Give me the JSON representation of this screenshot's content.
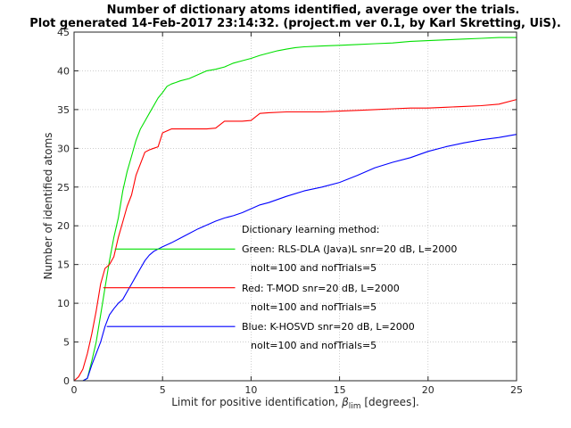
{
  "chart_data": {
    "type": "line",
    "title_line1": "Number of dictionary atoms identified, average over the trials.",
    "title_line2": "Plot generated 14-Feb-2017 23:14:32. (project.m ver 0.1, by Karl Skretting, UiS).",
    "xlabel_prefix": "Limit for positive identification, ",
    "xlabel_symbol": "β",
    "xlabel_subscript": "lim",
    "xlabel_suffix": " [degrees].",
    "ylabel": "Number of identified atoms",
    "xlim": [
      0,
      25
    ],
    "ylim": [
      0,
      45
    ],
    "xticks": [
      0,
      5,
      10,
      15,
      20,
      25
    ],
    "yticks": [
      0,
      5,
      10,
      15,
      20,
      25,
      30,
      35,
      40,
      45
    ],
    "grid": true,
    "series": [
      {
        "color": "#00e000",
        "x": [
          0,
          0.5,
          0.75,
          1,
          1.25,
          1.5,
          1.75,
          2,
          2.25,
          2.5,
          2.75,
          3,
          3.25,
          3.5,
          3.75,
          4,
          4.25,
          4.5,
          4.75,
          5,
          5.25,
          5.5,
          5.75,
          6,
          6.5,
          7,
          7.5,
          8,
          8.5,
          9,
          9.5,
          10,
          10.5,
          11,
          11.5,
          12,
          12.5,
          13,
          14,
          15,
          16,
          17,
          18,
          19,
          20,
          21,
          22,
          23,
          24,
          25
        ],
        "y": [
          0,
          0,
          0.3,
          2.5,
          5,
          8.5,
          12,
          15.5,
          18.5,
          21,
          24.5,
          27,
          29,
          31,
          32.5,
          33.5,
          34.5,
          35.5,
          36.5,
          37.2,
          38,
          38.3,
          38.5,
          38.7,
          39,
          39.5,
          40,
          40.2,
          40.5,
          41,
          41.3,
          41.6,
          42,
          42.3,
          42.6,
          42.8,
          43,
          43.1,
          43.2,
          43.3,
          43.4,
          43.5,
          43.6,
          43.8,
          43.9,
          44,
          44.1,
          44.2,
          44.3,
          44.3
        ]
      },
      {
        "color": "#ff0000",
        "x": [
          0,
          0.25,
          0.5,
          0.75,
          1,
          1.25,
          1.5,
          1.75,
          2,
          2.25,
          2.5,
          2.75,
          3,
          3.25,
          3.5,
          3.75,
          4,
          4.25,
          4.5,
          4.75,
          5,
          5.5,
          6,
          6.5,
          7,
          7.5,
          8,
          8.5,
          9,
          9.5,
          10,
          10.5,
          11,
          12,
          13,
          14,
          15,
          16,
          17,
          18,
          19,
          20,
          21,
          22,
          23,
          24,
          25
        ],
        "y": [
          0,
          0.5,
          1.5,
          3.5,
          6,
          9,
          12.5,
          14.5,
          15,
          16,
          18.5,
          20.5,
          22.5,
          24,
          26.5,
          28,
          29.5,
          29.8,
          30,
          30.2,
          32,
          32.5,
          32.5,
          32.5,
          32.5,
          32.5,
          32.6,
          33.5,
          33.5,
          33.5,
          33.6,
          34.5,
          34.6,
          34.7,
          34.7,
          34.7,
          34.8,
          34.9,
          35,
          35.1,
          35.2,
          35.2,
          35.3,
          35.4,
          35.5,
          35.7,
          36.3
        ]
      },
      {
        "color": "#0000ff",
        "x": [
          0,
          0.5,
          0.75,
          1,
          1.25,
          1.5,
          1.75,
          2,
          2.25,
          2.5,
          2.75,
          3,
          3.25,
          3.5,
          3.75,
          4,
          4.25,
          4.5,
          4.75,
          5,
          5.5,
          6,
          6.5,
          7,
          7.5,
          8,
          8.5,
          9,
          9.5,
          10,
          10.5,
          11,
          12,
          13,
          14,
          15,
          16,
          17,
          18,
          19,
          20,
          21,
          22,
          23,
          24,
          25
        ],
        "y": [
          0,
          0,
          0.3,
          2,
          3.5,
          5,
          7,
          8.5,
          9.3,
          10,
          10.5,
          11.5,
          12.5,
          13.5,
          14.5,
          15.5,
          16.2,
          16.7,
          17,
          17.3,
          17.8,
          18.4,
          19,
          19.6,
          20.1,
          20.6,
          21,
          21.3,
          21.7,
          22.2,
          22.7,
          23,
          23.8,
          24.5,
          25,
          25.6,
          26.5,
          27.5,
          28.2,
          28.8,
          29.6,
          30.2,
          30.7,
          31.1,
          31.4,
          31.8
        ]
      }
    ],
    "legend": {
      "placement": "center-right",
      "heading": "Dictionary learning method:",
      "entries": [
        {
          "color": "#00e000",
          "x_range": [
            2.3,
            9.1
          ],
          "y": 17,
          "line1": "Green: RLS-DLA (Java)L snr=20 dB, L=2000",
          "line2": "noIt=100 and nofTrials=5"
        },
        {
          "color": "#ff0000",
          "x_range": [
            1.65,
            9.1
          ],
          "y": 12,
          "line1": "Red: T-MOD snr=20 dB, L=2000",
          "line2": "noIt=100 and nofTrials=5"
        },
        {
          "color": "#0000ff",
          "x_range": [
            1.85,
            9.1
          ],
          "y": 7,
          "line1": "Blue: K-HOSVD snr=20 dB, L=2000",
          "line2": "noIt=100 and nofTrials=5"
        }
      ]
    }
  }
}
